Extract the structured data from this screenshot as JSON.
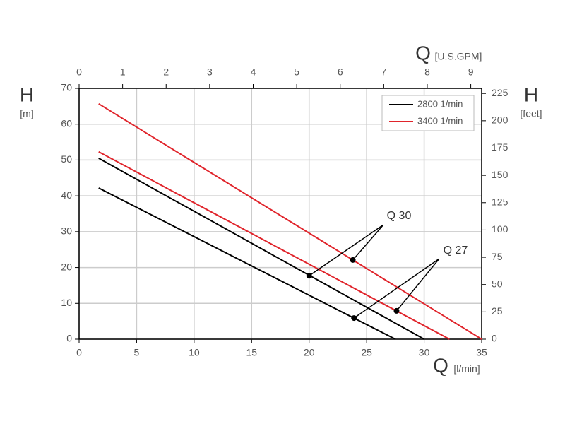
{
  "chart_data": {
    "type": "line",
    "x_label": {
      "symbol": "Q",
      "unit": "[l/min]"
    },
    "x2_label": {
      "symbol": "Q",
      "unit": "[U.S.GPM]"
    },
    "y_label": {
      "symbol": "H",
      "unit": "[m]"
    },
    "y2_label": {
      "symbol": "H",
      "unit": "[feet]"
    },
    "xlim": [
      0,
      35
    ],
    "xticks": [
      0,
      5,
      10,
      15,
      20,
      25,
      30,
      35
    ],
    "x2lim": [
      0,
      9.25
    ],
    "x2ticks": [
      0,
      1,
      2,
      3,
      4,
      5,
      6,
      7,
      8,
      9
    ],
    "ylim": [
      0,
      70
    ],
    "yticks": [
      0,
      10,
      20,
      30,
      40,
      50,
      60,
      70
    ],
    "y2lim": [
      0,
      229.66
    ],
    "y2ticks": [
      0,
      25,
      50,
      75,
      100,
      125,
      150,
      175,
      200,
      225
    ],
    "grid": true,
    "legend": "top-right",
    "series": [
      {
        "name": "2800 1/min",
        "color": "#000000",
        "curves": [
          {
            "x": [
              1.7,
              27.5
            ],
            "values": [
              42.2,
              0
            ]
          },
          {
            "x": [
              1.7,
              30
            ],
            "values": [
              50.5,
              0
            ]
          }
        ]
      },
      {
        "name": "3400 1/min",
        "color": "#e0242b",
        "curves": [
          {
            "x": [
              1.7,
              32.2
            ],
            "values": [
              52.3,
              0
            ]
          },
          {
            "x": [
              1.7,
              35
            ],
            "values": [
              65.7,
              0
            ]
          }
        ]
      }
    ],
    "annotations": [
      {
        "text": "Q 30",
        "points": [
          {
            "x": 20,
            "y": 17.7
          },
          {
            "x": 23.8,
            "y": 22.1
          }
        ]
      },
      {
        "text": "Q 27",
        "points": [
          {
            "x": 23.9,
            "y": 5.9
          },
          {
            "x": 27.6,
            "y": 7.9
          }
        ]
      }
    ]
  }
}
